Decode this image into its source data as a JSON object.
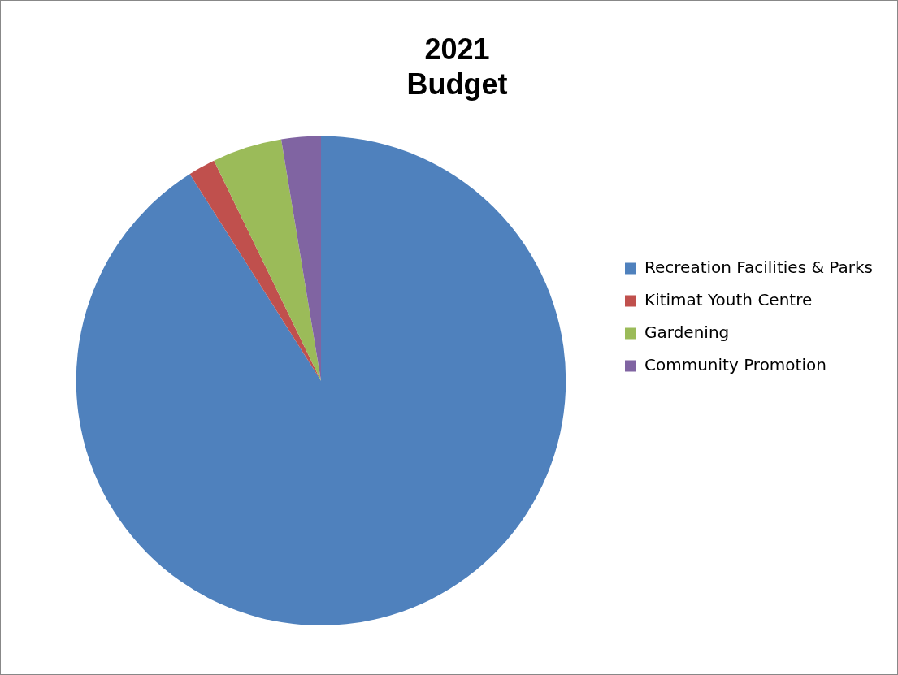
{
  "chart_data": {
    "type": "pie",
    "title": "2021\nBudget",
    "categories": [
      "Recreation Facilities & Parks",
      "Kitimat Youth Centre",
      "Gardening",
      "Community Promotion"
    ],
    "values": [
      91,
      1.8,
      4.6,
      2.6
    ],
    "colors": [
      "#4f81bd",
      "#c0504d",
      "#9bbb59",
      "#8064a2"
    ],
    "legend": "right"
  }
}
